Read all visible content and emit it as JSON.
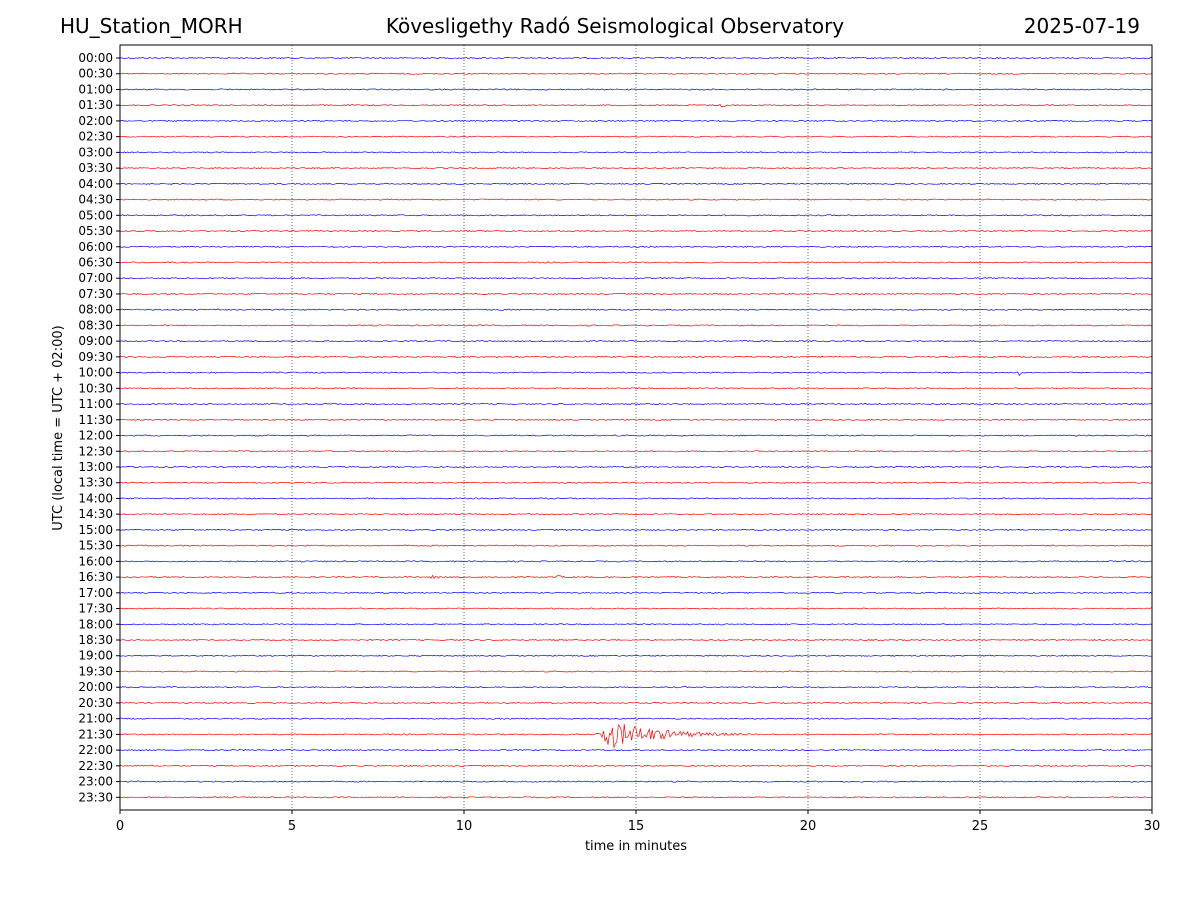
{
  "header": {
    "station": "HU_Station_MORH",
    "title": "Kövesligethy Radó Seismological Observatory",
    "date": "2025-07-19"
  },
  "chart_data": {
    "type": "line",
    "title": "Kövesligethy Radó Seismological Observatory",
    "xlabel": "time in minutes",
    "ylabel": "UTC (local time = UTC + 02:00)",
    "xlim": [
      0,
      30
    ],
    "xticks": [
      0,
      5,
      10,
      15,
      20,
      25,
      30
    ],
    "vertical_gridlines": [
      5,
      10,
      15,
      20,
      25
    ],
    "grid": "x-dotted",
    "rows": [
      "00:00",
      "00:30",
      "01:00",
      "01:30",
      "02:00",
      "02:30",
      "03:00",
      "03:30",
      "04:00",
      "04:30",
      "05:00",
      "05:30",
      "06:00",
      "06:30",
      "07:00",
      "07:30",
      "08:00",
      "08:30",
      "09:00",
      "09:30",
      "10:00",
      "10:30",
      "11:00",
      "11:30",
      "12:00",
      "12:30",
      "13:00",
      "13:30",
      "14:00",
      "14:30",
      "15:00",
      "15:30",
      "16:00",
      "16:30",
      "17:00",
      "17:30",
      "18:00",
      "18:30",
      "19:00",
      "19:30",
      "20:00",
      "20:30",
      "21:00",
      "21:30",
      "22:00",
      "22:30",
      "23:00",
      "23:30"
    ],
    "colors": [
      "#0000ff",
      "#ff0000"
    ],
    "events": [
      {
        "row": "01:30",
        "start": 17.4,
        "end": 18.6,
        "amplitude": 0.15
      },
      {
        "row": "06:30",
        "start": 24.6,
        "end": 25.0,
        "amplitude": 0.2
      },
      {
        "row": "08:00",
        "start": 11.0,
        "end": 11.5,
        "amplitude": 0.12
      },
      {
        "row": "10:00",
        "start": 26.1,
        "end": 26.5,
        "amplitude": 0.2
      },
      {
        "row": "16:30",
        "start": 9.0,
        "end": 10.2,
        "amplitude": 0.15
      },
      {
        "row": "16:30",
        "start": 12.6,
        "end": 13.8,
        "amplitude": 0.12
      },
      {
        "row": "21:30",
        "start": 13.8,
        "end": 19.5,
        "amplitude": 0.9
      }
    ]
  }
}
